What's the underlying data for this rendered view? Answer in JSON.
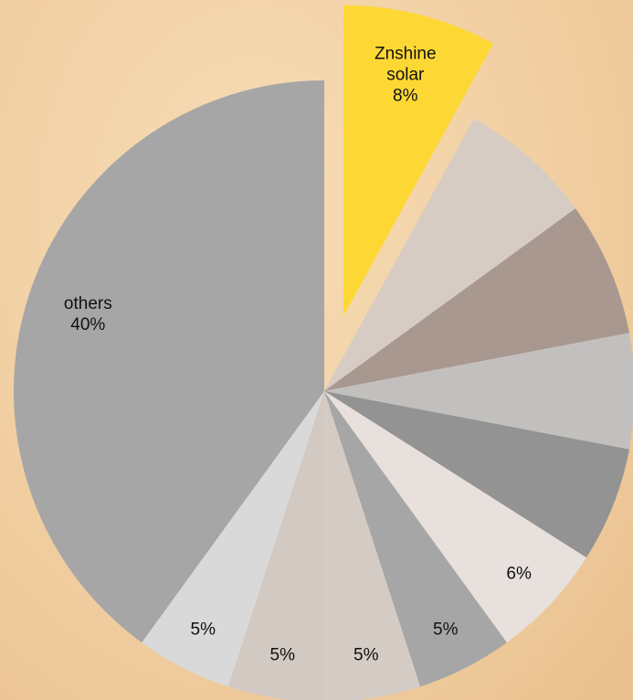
{
  "chart_data": {
    "type": "pie",
    "categories": [
      "Znshine solar",
      null,
      null,
      null,
      null,
      null,
      null,
      null,
      null,
      null,
      "others"
    ],
    "values": [
      8,
      7,
      7,
      6,
      6,
      6,
      5,
      5,
      5,
      5,
      40
    ],
    "value_labels": [
      "8%",
      null,
      null,
      null,
      null,
      "6%",
      "5%",
      "5%",
      "5%",
      "5%",
      "40%"
    ],
    "colors": [
      "#fdd835",
      "#d6ccc4",
      "#a99890",
      "#c2c0bf",
      "#939393",
      "#e8e0dc",
      "#a6a6a6",
      "#d4cbc4",
      "#d2c9c2",
      "#d9d9d9",
      "#a6a6a6"
    ],
    "exploded": [
      true,
      false,
      false,
      false,
      false,
      false,
      false,
      false,
      false,
      false,
      false
    ]
  }
}
